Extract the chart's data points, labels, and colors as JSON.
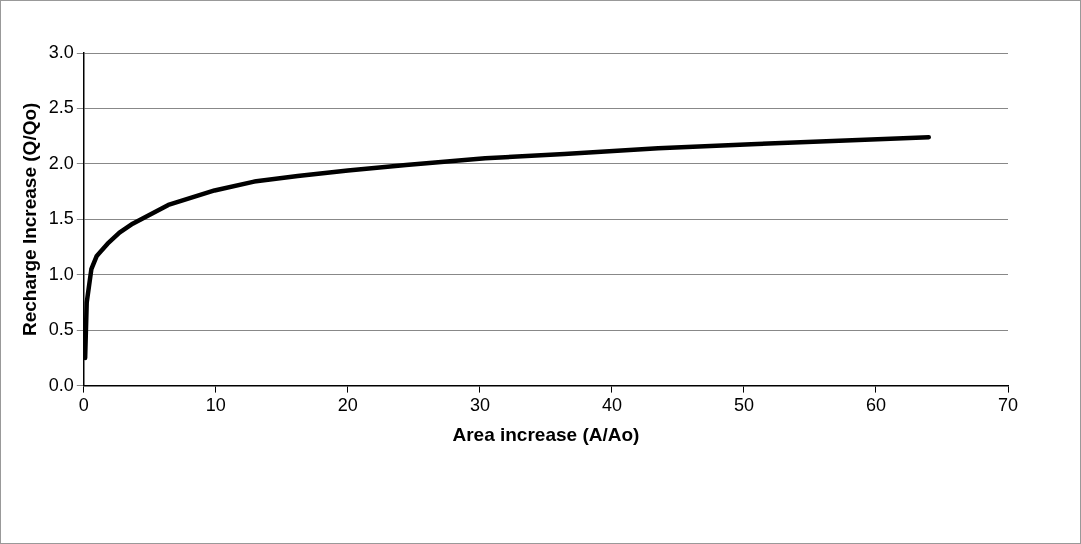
{
  "chart_data": {
    "type": "line",
    "xlabel": "Area increase (A/Ao)",
    "ylabel": "Recharge Increase (Q/Qo)",
    "x": [
      0.1,
      0.22,
      0.57,
      0.98,
      1.8,
      2.7,
      3.7,
      6.4,
      9.9,
      12.9,
      16.2,
      20,
      24.4,
      30.4,
      36.4,
      43.5,
      51,
      57.7,
      64
    ],
    "series": [
      {
        "color": "#000000",
        "values": [
          0.25,
          0.75,
          1.05,
          1.17,
          1.28,
          1.38,
          1.46,
          1.63,
          1.76,
          1.84,
          1.89,
          1.94,
          1.99,
          2.05,
          2.09,
          2.14,
          2.18,
          2.21,
          2.24
        ]
      }
    ],
    "xlim": [
      0,
      70
    ],
    "xticks": [
      0,
      10,
      20,
      30,
      40,
      50,
      60,
      70
    ],
    "ylim": [
      0,
      3
    ],
    "yticks": [
      {
        "value": 0,
        "label": "0.0"
      },
      0.5,
      {
        "value": 1,
        "label": "1.0"
      },
      1.5,
      {
        "value": 2,
        "label": "2.0"
      },
      2.5,
      {
        "value": 3,
        "label": "3.0"
      }
    ],
    "grid": "y",
    "legend": false,
    "marker": "none",
    "line_style": "solid"
  }
}
